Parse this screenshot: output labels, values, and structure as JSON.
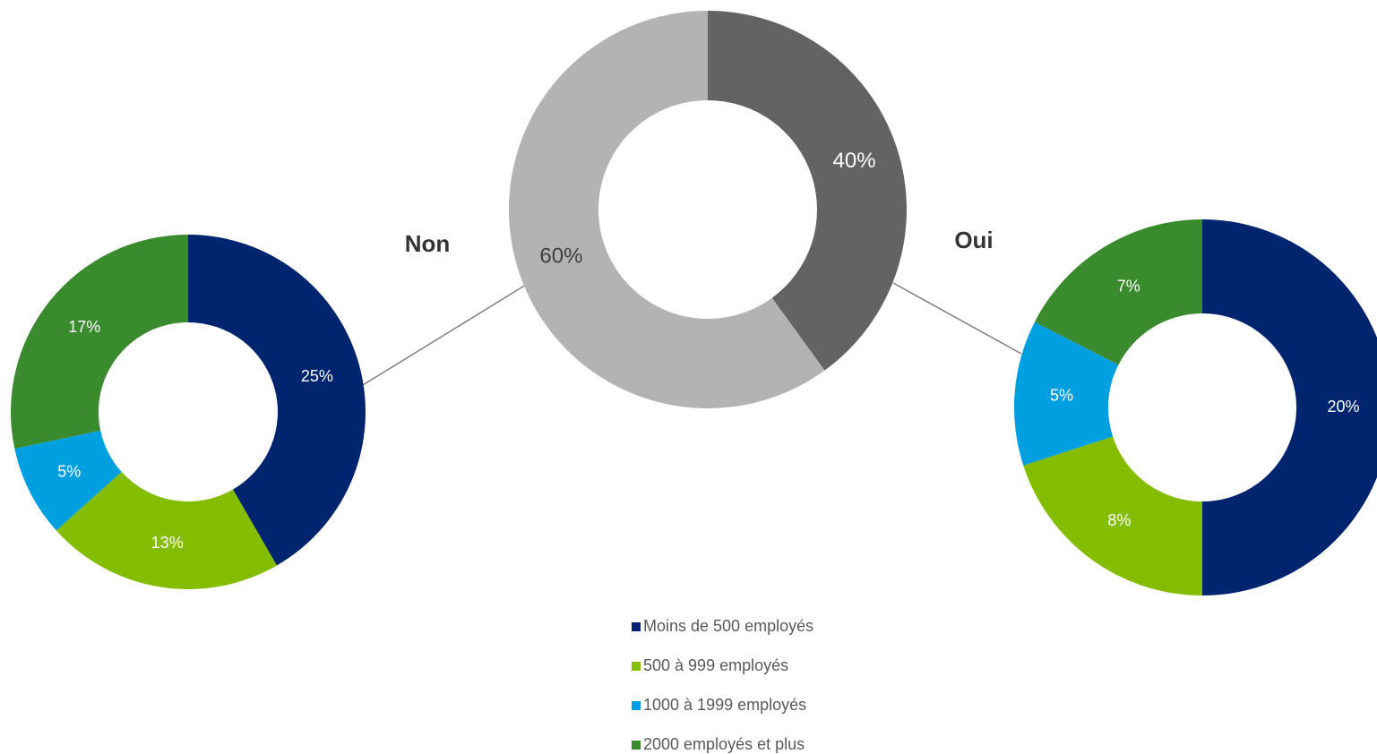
{
  "chart_data": [
    {
      "type": "donut",
      "values": [
        40,
        60
      ],
      "value_labels": [
        "40%",
        "60%"
      ],
      "colors": [
        "#636363",
        "#b3b3b3"
      ],
      "label_colors": [
        "#ffffff",
        "#404040"
      ]
    },
    {
      "type": "donut",
      "categories": [
        "Moins de 500 employés",
        "500 à 999 employés",
        "1000 à 1999 employés",
        "2000 employés et plus"
      ],
      "colors": [
        "#00256e",
        "#84bd00",
        "#009fdf",
        "#3a8a2e"
      ],
      "series": [
        {
          "name": "Non",
          "values": [
            25,
            13,
            5,
            17
          ],
          "value_labels": [
            "25%",
            "13%",
            "5%",
            "17%"
          ]
        },
        {
          "name": "Oui",
          "values": [
            20,
            8,
            5,
            7
          ],
          "value_labels": [
            "20%",
            "8%",
            "5%",
            "7%"
          ]
        }
      ]
    }
  ]
}
